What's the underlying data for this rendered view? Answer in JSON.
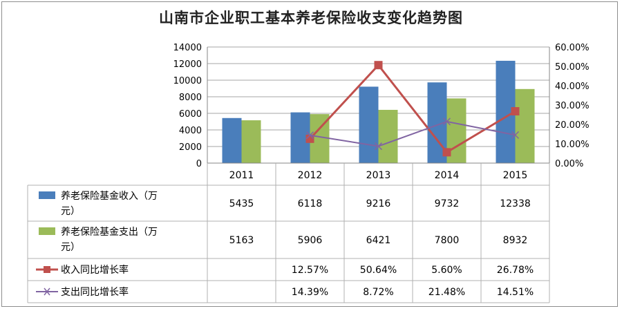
{
  "title": "山南市企业职工基本养老保险收支变化趋势图",
  "chart_data": {
    "type": "bar",
    "categories": [
      "2011",
      "2012",
      "2013",
      "2014",
      "2015"
    ],
    "series": [
      {
        "name": "养老保险基金收入（万元）",
        "type": "bar",
        "axis": "left",
        "color": "#4a7ebb",
        "values": [
          5435,
          6118,
          9216,
          9732,
          12338
        ],
        "labels": [
          "5435",
          "6118",
          "9216",
          "9732",
          "12338"
        ]
      },
      {
        "name": "养老保险基金支出（万元）",
        "type": "bar",
        "axis": "left",
        "color": "#9bbb59",
        "values": [
          5163,
          5906,
          6421,
          7800,
          8932
        ],
        "labels": [
          "5163",
          "5906",
          "6421",
          "7800",
          "8932"
        ]
      },
      {
        "name": "收入同比增长率",
        "type": "line",
        "axis": "right",
        "color": "#c0504d",
        "marker": "square",
        "values": [
          null,
          12.57,
          50.64,
          5.6,
          26.78
        ],
        "labels": [
          "",
          "12.57%",
          "50.64%",
          "5.60%",
          "26.78%"
        ]
      },
      {
        "name": "支出同比增长率",
        "type": "line",
        "axis": "right",
        "color": "#8064a2",
        "marker": "x",
        "values": [
          null,
          14.39,
          8.72,
          21.48,
          14.51
        ],
        "labels": [
          "",
          "14.39%",
          "8.72%",
          "21.48%",
          "14.51%"
        ]
      }
    ],
    "ylim": [
      0,
      14000
    ],
    "yticks": [
      "0",
      "2000",
      "4000",
      "6000",
      "8000",
      "10000",
      "12000",
      "14000"
    ],
    "y2lim": [
      0,
      60
    ],
    "y2ticks": [
      "0.00%",
      "10.00%",
      "20.00%",
      "30.00%",
      "40.00%",
      "50.00%",
      "60.00%"
    ],
    "grid": true,
    "legend": "data-table"
  }
}
